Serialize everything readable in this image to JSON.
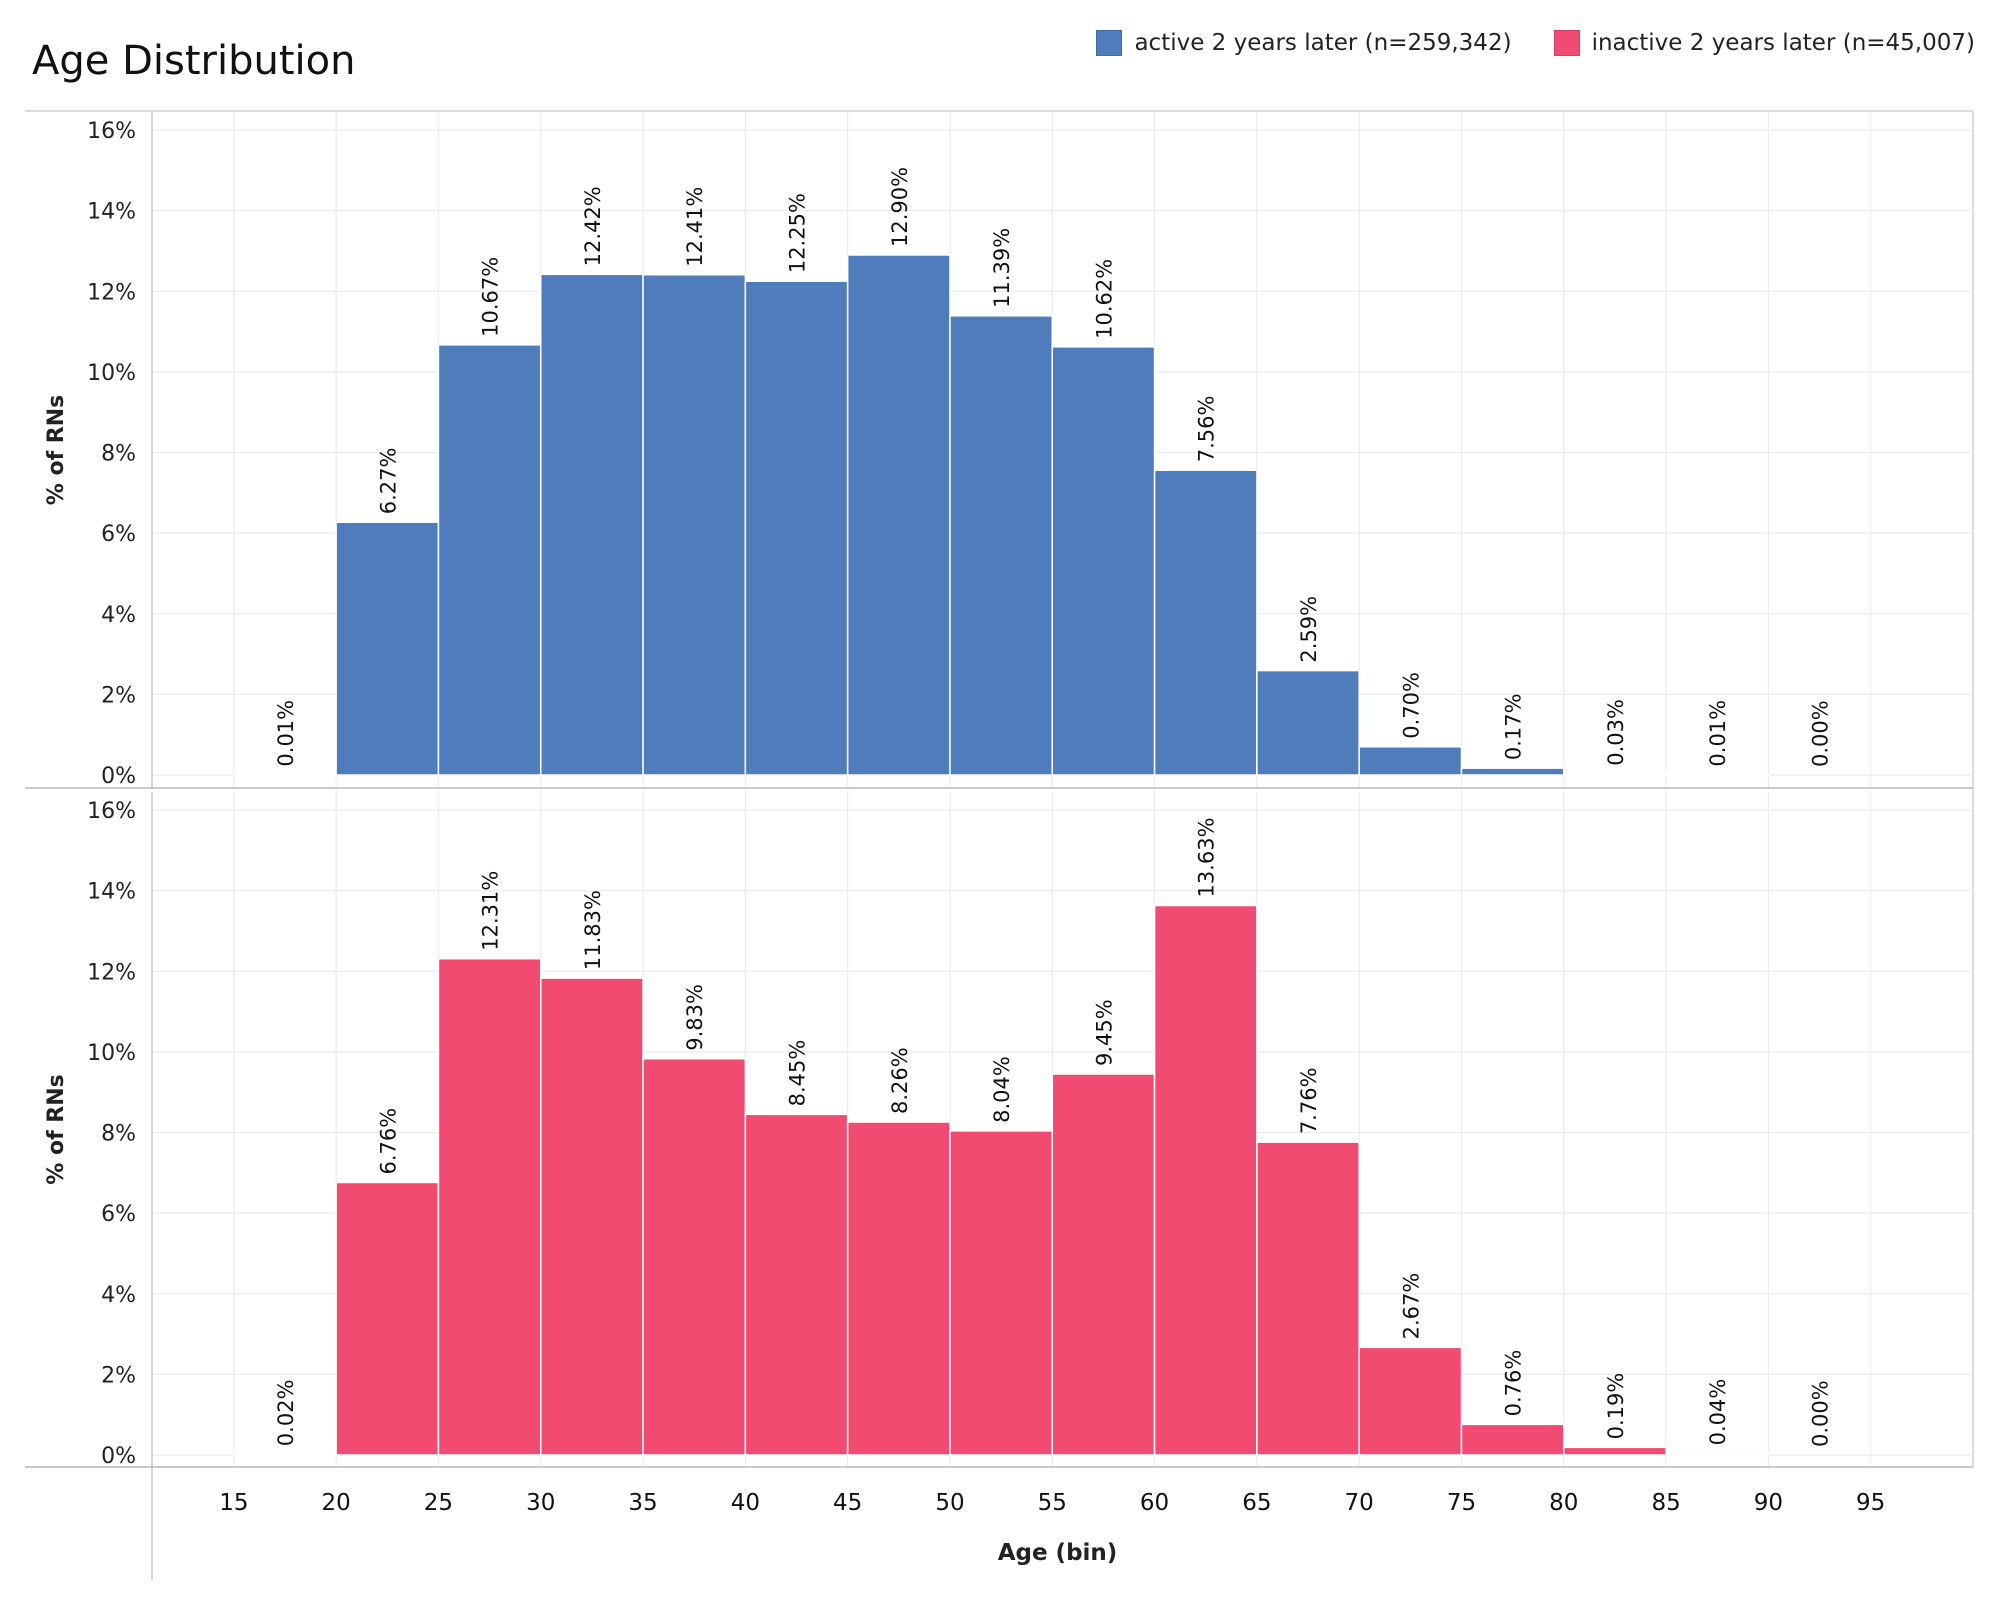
{
  "chart_data": {
    "type": "bar",
    "title": "Age Distribution",
    "xlabel": "Age (bin)",
    "ylabel": "% of RNs",
    "x_ticks": [
      15,
      20,
      25,
      30,
      35,
      40,
      45,
      50,
      55,
      60,
      65,
      70,
      75,
      80,
      85,
      90,
      95
    ],
    "y_ticks": [
      "0%",
      "2%",
      "4%",
      "6%",
      "8%",
      "10%",
      "12%",
      "14%",
      "16%"
    ],
    "ylim": [
      0,
      16
    ],
    "xlim": [
      11,
      100
    ],
    "bin_width": 5,
    "categories": [
      15,
      20,
      25,
      30,
      35,
      40,
      45,
      50,
      55,
      60,
      65,
      70,
      75,
      80,
      85,
      90
    ],
    "grid": true,
    "legend_position": "top-right",
    "series": [
      {
        "name": "active 2 years later (n=259,342)",
        "color": "#4f7cba",
        "values": [
          0.01,
          6.27,
          10.67,
          12.42,
          12.41,
          12.25,
          12.9,
          11.39,
          10.62,
          7.56,
          2.59,
          0.7,
          0.17,
          0.03,
          0.01,
          0.0
        ],
        "labels": [
          "0.01%",
          "6.27%",
          "10.67%",
          "12.42%",
          "12.41%",
          "12.25%",
          "12.90%",
          "11.39%",
          "10.62%",
          "7.56%",
          "2.59%",
          "0.70%",
          "0.17%",
          "0.03%",
          "0.01%",
          "0.00%"
        ]
      },
      {
        "name": "inactive 2 years later (n=45,007)",
        "color": "#f24b72",
        "values": [
          0.02,
          6.76,
          12.31,
          11.83,
          9.83,
          8.45,
          8.26,
          8.04,
          9.45,
          13.63,
          7.76,
          2.67,
          0.76,
          0.19,
          0.04,
          0.0
        ],
        "labels": [
          "0.02%",
          "6.76%",
          "12.31%",
          "11.83%",
          "9.83%",
          "8.45%",
          "8.26%",
          "8.04%",
          "9.45%",
          "13.63%",
          "7.76%",
          "2.67%",
          "0.76%",
          "0.19%",
          "0.04%",
          "0.00%"
        ]
      }
    ]
  }
}
